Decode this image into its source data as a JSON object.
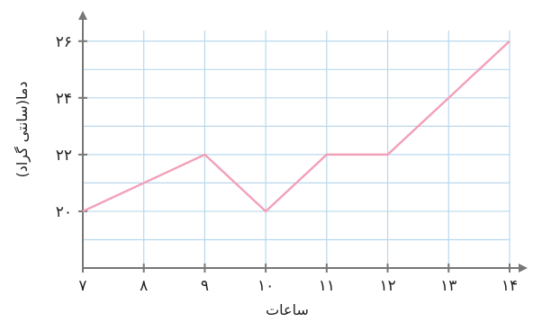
{
  "chart_data": {
    "type": "line",
    "xlabel": "ساعات",
    "ylabel": "دما(سانتی گراد)",
    "x": [
      7,
      8,
      9,
      10,
      11,
      12,
      13,
      14
    ],
    "x_tick_labels": [
      "۷",
      "۸",
      "۹",
      "۱۰",
      "۱۱",
      "۱۲",
      "۱۳",
      "۱۴"
    ],
    "y_ticks": [
      20,
      22,
      24,
      26
    ],
    "y_tick_labels": [
      "۲۰",
      "۲۲",
      "۲۴",
      "۲۶"
    ],
    "series": [
      {
        "values": [
          20,
          21,
          22,
          20,
          22,
          22,
          24,
          26
        ]
      }
    ],
    "xlim": [
      7,
      14
    ],
    "ylim": [
      18,
      26.5
    ],
    "grid": true,
    "colors": {
      "line": "#f2a0b8",
      "grid": "#b9d8ee",
      "axis": "#777777"
    }
  }
}
